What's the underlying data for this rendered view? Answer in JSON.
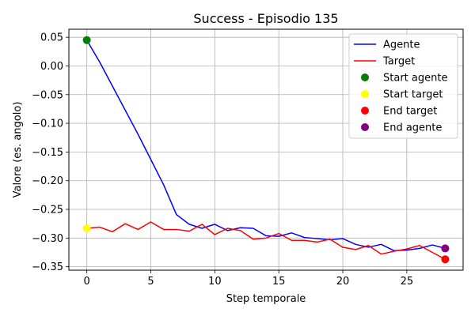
{
  "chart_data": {
    "type": "line",
    "title": "Success - Episodio 135",
    "xlabel": "Step temporale",
    "ylabel": "Valore (es. angolo)",
    "xlim": [
      -1.4,
      29.4
    ],
    "ylim": [
      -0.356,
      0.064
    ],
    "grid": true,
    "legend_position": "top-right",
    "x_ticks": [
      {
        "value": 0,
        "label": "0"
      },
      {
        "value": 5,
        "label": "5"
      },
      {
        "value": 10,
        "label": "10"
      },
      {
        "value": 15,
        "label": "15"
      },
      {
        "value": 20,
        "label": "20"
      },
      {
        "value": 25,
        "label": "25"
      }
    ],
    "y_ticks": [
      {
        "value": 0.05,
        "label": "0.05"
      },
      {
        "value": 0.0,
        "label": "0.00"
      },
      {
        "value": -0.05,
        "label": "−0.05"
      },
      {
        "value": -0.1,
        "label": "−0.10"
      },
      {
        "value": -0.15,
        "label": "−0.15"
      },
      {
        "value": -0.2,
        "label": "−0.20"
      },
      {
        "value": -0.25,
        "label": "−0.25"
      },
      {
        "value": -0.3,
        "label": "−0.30"
      },
      {
        "value": -0.35,
        "label": "−0.35"
      }
    ],
    "series": [
      {
        "name": "Agente",
        "kind": "line",
        "color": "#0000ff",
        "x": [
          0,
          1,
          2,
          3,
          4,
          5,
          6,
          7,
          8,
          9,
          10,
          11,
          12,
          13,
          14,
          15,
          16,
          17,
          18,
          19,
          20,
          21,
          22,
          23,
          24,
          25,
          26,
          27,
          28
        ],
        "y": [
          0.045,
          0.007,
          -0.035,
          -0.077,
          -0.119,
          -0.163,
          -0.207,
          -0.259,
          -0.276,
          -0.283,
          -0.276,
          -0.287,
          -0.282,
          -0.283,
          -0.296,
          -0.297,
          -0.291,
          -0.299,
          -0.301,
          -0.303,
          -0.301,
          -0.311,
          -0.316,
          -0.311,
          -0.322,
          -0.321,
          -0.318,
          -0.312,
          -0.318
        ]
      },
      {
        "name": "Target",
        "kind": "line",
        "color": "#ff0000",
        "x": [
          0,
          1,
          2,
          3,
          4,
          5,
          6,
          7,
          8,
          9,
          10,
          11,
          12,
          13,
          14,
          15,
          16,
          17,
          18,
          19,
          20,
          21,
          22,
          23,
          24,
          25,
          26,
          27,
          28
        ],
        "y": [
          -0.283,
          -0.281,
          -0.289,
          -0.275,
          -0.285,
          -0.272,
          -0.285,
          -0.285,
          -0.288,
          -0.276,
          -0.294,
          -0.283,
          -0.287,
          -0.302,
          -0.3,
          -0.292,
          -0.304,
          -0.304,
          -0.307,
          -0.302,
          -0.316,
          -0.32,
          -0.313,
          -0.328,
          -0.323,
          -0.319,
          -0.313,
          -0.325,
          -0.337
        ]
      },
      {
        "name": "Start agente",
        "kind": "marker",
        "color": "#008000",
        "x": [
          0
        ],
        "y": [
          0.045
        ]
      },
      {
        "name": "Start target",
        "kind": "marker",
        "color": "#ffff00",
        "x": [
          0
        ],
        "y": [
          -0.283
        ]
      },
      {
        "name": "End target",
        "kind": "marker",
        "color": "#ff0000",
        "x": [
          28
        ],
        "y": [
          -0.337
        ]
      },
      {
        "name": "End agente",
        "kind": "marker",
        "color": "#800080",
        "x": [
          28
        ],
        "y": [
          -0.318
        ]
      }
    ]
  }
}
